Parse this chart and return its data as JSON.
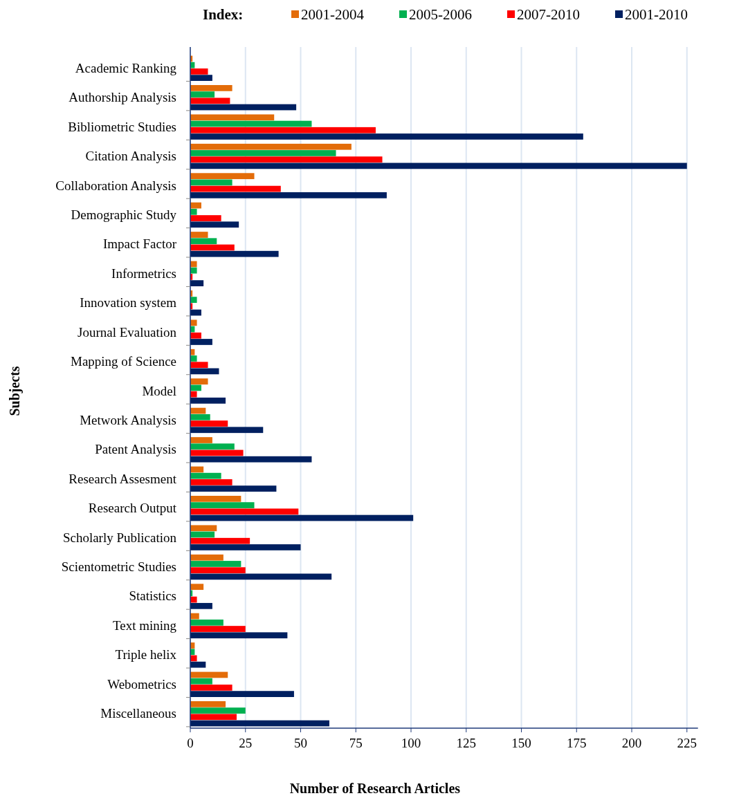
{
  "chart_data": {
    "type": "bar",
    "orientation": "horizontal",
    "xlabel": "Number  of Research Articles",
    "ylabel": "Subjects",
    "legend_title": "Index:",
    "legend": "top",
    "grid": "x",
    "categories": [
      "Academic Ranking",
      "Authorship Analysis",
      "Bibliometric Studies",
      "Citation Analysis",
      "Collaboration Analysis",
      "Demographic Study",
      "Impact Factor",
      "Informetrics",
      "Innovation system",
      "Journal Evaluation",
      "Mapping of Science",
      "Model",
      "Metwork Analysis",
      "Patent Analysis",
      "Research Assesment",
      "Research Output",
      "Scholarly Publication",
      "Scientometric Studies",
      "Statistics",
      "Text mining",
      "Triple helix",
      "Webometrics",
      "Miscellaneous"
    ],
    "xlim": [
      0,
      230
    ],
    "xticks": [
      0,
      25,
      50,
      75,
      100,
      125,
      150,
      175,
      200,
      225
    ],
    "series": [
      {
        "name": "2001-2004",
        "color": "#e36c09",
        "values": [
          1,
          19,
          38,
          73,
          29,
          5,
          8,
          3,
          1,
          3,
          2,
          8,
          7,
          10,
          6,
          23,
          12,
          15,
          6,
          4,
          2,
          17,
          16
        ]
      },
      {
        "name": "2005-2006",
        "color": "#00b050",
        "values": [
          2,
          11,
          55,
          66,
          19,
          3,
          12,
          3,
          3,
          2,
          3,
          5,
          9,
          20,
          14,
          29,
          11,
          23,
          1,
          15,
          2,
          10,
          25
        ]
      },
      {
        "name": "2007-2010",
        "color": "#ff0000",
        "values": [
          8,
          18,
          84,
          87,
          41,
          14,
          20,
          1,
          1,
          5,
          8,
          3,
          17,
          24,
          19,
          49,
          27,
          25,
          3,
          25,
          3,
          19,
          21
        ]
      },
      {
        "name": "2001-2010",
        "color": "#002060",
        "values": [
          10,
          48,
          178,
          225,
          89,
          22,
          40,
          6,
          5,
          10,
          13,
          16,
          33,
          55,
          39,
          101,
          50,
          64,
          10,
          44,
          7,
          47,
          63
        ]
      }
    ]
  }
}
